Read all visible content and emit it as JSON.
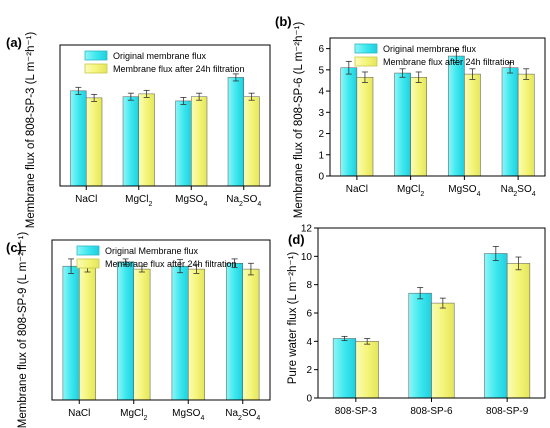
{
  "colors": {
    "original": "#3ee8ee",
    "after": "#f4f57a",
    "error_bar": "#333333",
    "axis": "#000000"
  },
  "chart_data": [
    {
      "panel": "(a)",
      "type": "bar",
      "ylabel": "Membrane flux of 808-SP-3 (L m⁻²h⁻¹)",
      "categories": [
        "NaCl",
        "MgCl2",
        "MgSO4",
        "Na2SO4"
      ],
      "ylim": [
        0,
        6
      ],
      "yticks": [],
      "series": [
        {
          "name": "Original membrane flux",
          "values": [
            4.05,
            3.8,
            3.62,
            4.62
          ],
          "errors": [
            0.15,
            0.15,
            0.15,
            0.15
          ]
        },
        {
          "name": "Membrane flux after 24h filtration",
          "values": [
            3.75,
            3.92,
            3.8,
            3.8
          ],
          "errors": [
            0.15,
            0.15,
            0.15,
            0.15
          ]
        }
      ],
      "legend": "top-left",
      "grid": false
    },
    {
      "panel": "(b)",
      "type": "bar",
      "ylabel": "Membrane flux of 808-SP-6 (L m⁻²h⁻¹)",
      "categories": [
        "NaCl",
        "MgCl2",
        "MgSO4",
        "Na2SO4"
      ],
      "ylim": [
        0,
        6.5
      ],
      "yticks": [
        "0",
        "1",
        "2",
        "3",
        "4",
        "5",
        "6"
      ],
      "series": [
        {
          "name": "Original membrane flux",
          "values": [
            5.1,
            4.85,
            5.65,
            5.1
          ],
          "errors": [
            0.3,
            0.2,
            0.3,
            0.25
          ]
        },
        {
          "name": "Membrane flux after 24h filtration",
          "values": [
            4.65,
            4.65,
            4.8,
            4.8
          ],
          "errors": [
            0.25,
            0.25,
            0.25,
            0.25
          ]
        }
      ],
      "legend": "top-left",
      "grid": false
    },
    {
      "panel": "(c)",
      "type": "bar",
      "ylabel": "Membrane flux of 808-SP-9 (L m⁻²h⁻¹)",
      "categories": [
        "NaCl",
        "MgCl2",
        "MgSO4",
        "Na2SO4"
      ],
      "ylim": [
        0,
        11
      ],
      "yticks": [],
      "series": [
        {
          "name": "Original Membrane flux",
          "values": [
            9.2,
            9.5,
            9.2,
            9.4
          ],
          "errors": [
            0.5,
            0.2,
            0.45,
            0.3
          ]
        },
        {
          "name": "Membrane flux after 24h filtration",
          "values": [
            9.2,
            9.0,
            9.0,
            9.0
          ],
          "errors": [
            0.4,
            0.2,
            0.3,
            0.4
          ]
        }
      ],
      "legend": "top-left",
      "grid": false
    },
    {
      "panel": "(d)",
      "type": "bar",
      "ylabel": "Pure water flux (L m⁻²h⁻¹)",
      "categories": [
        "808-SP-3",
        "808-SP-6",
        "808-SP-9"
      ],
      "ylim": [
        0,
        12
      ],
      "yticks": [
        "0",
        "2",
        "4",
        "6",
        "8",
        "10",
        "12"
      ],
      "series": [
        {
          "name": "",
          "values": [
            4.2,
            7.4,
            10.2
          ],
          "errors": [
            0.15,
            0.4,
            0.5
          ]
        },
        {
          "name": "",
          "values": [
            4.0,
            6.7,
            9.5
          ],
          "errors": [
            0.2,
            0.35,
            0.45
          ]
        }
      ],
      "legend": "none",
      "grid": false
    }
  ]
}
